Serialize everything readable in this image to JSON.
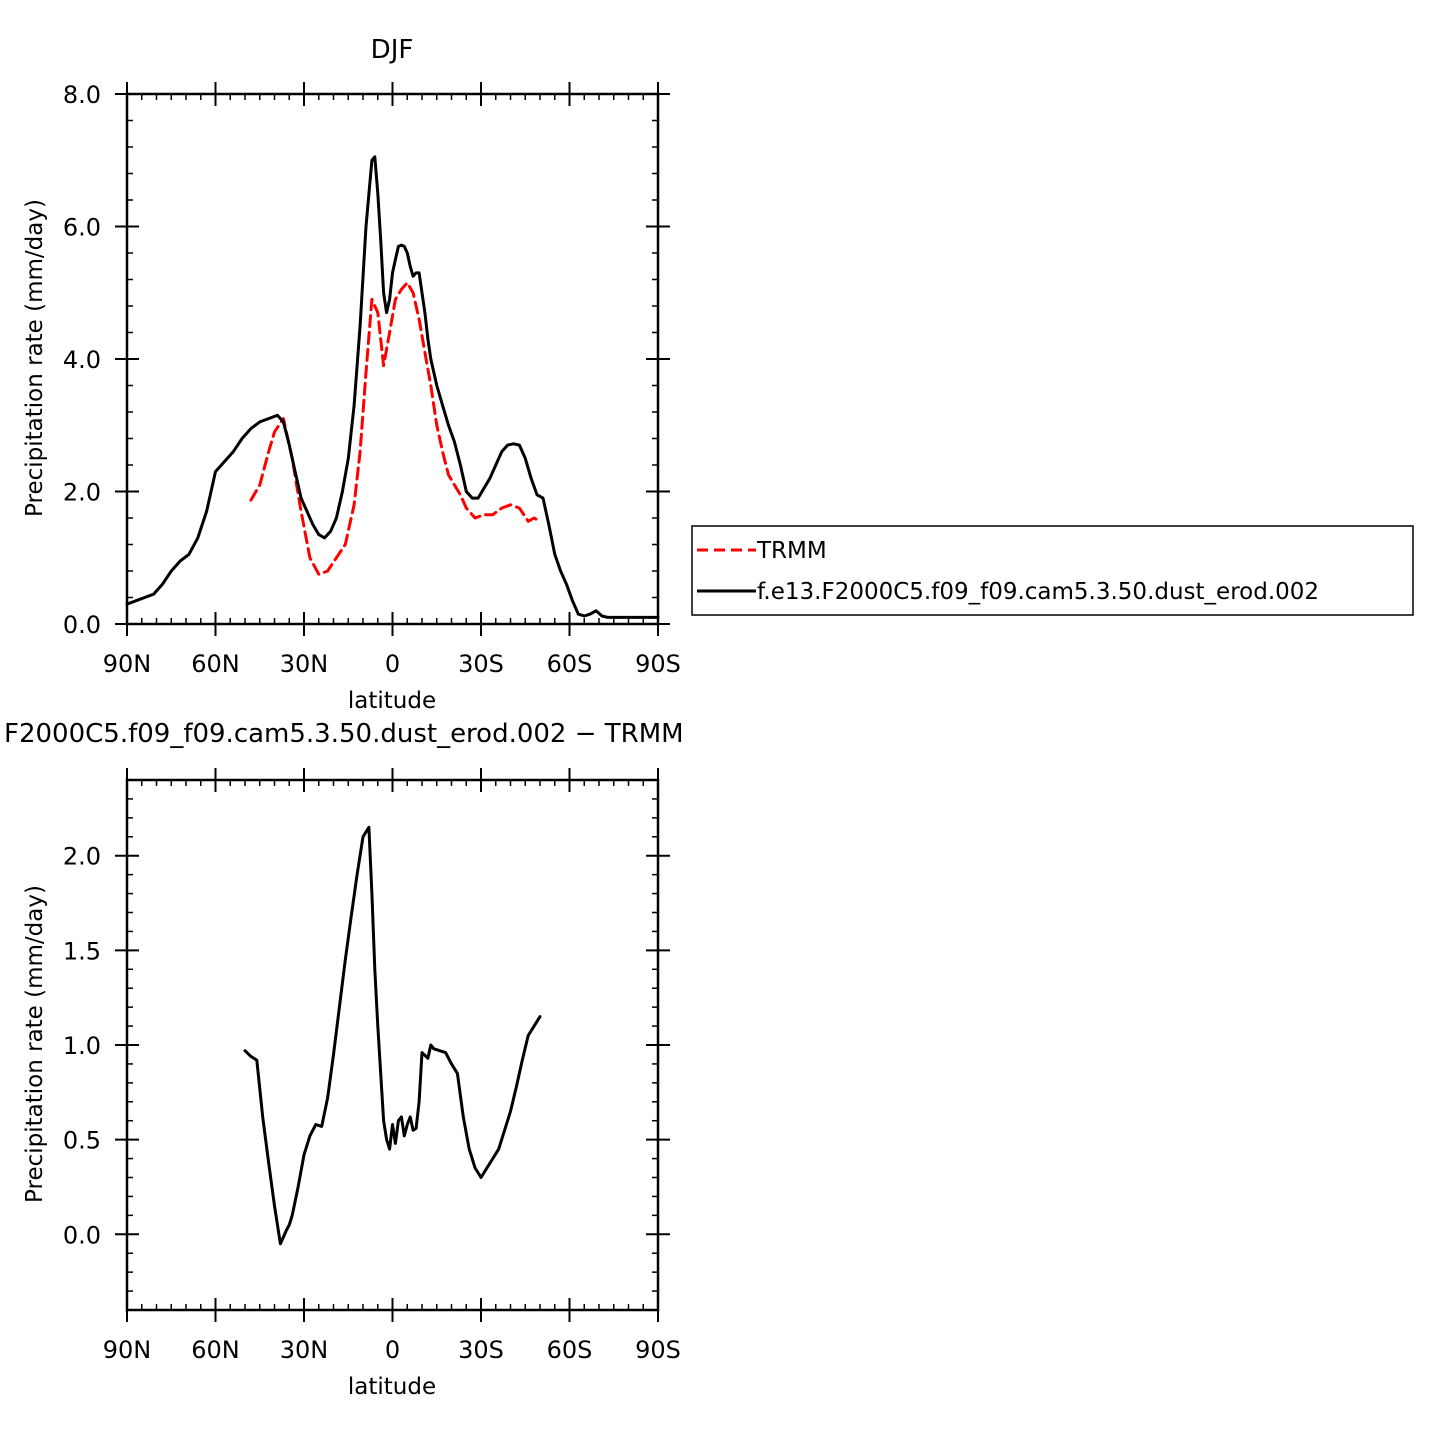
{
  "chart_data": [
    {
      "type": "line",
      "title": "DJF",
      "xlabel": "latitude",
      "ylabel": "Precipitation rate (mm/day)",
      "xlim": [
        -90,
        90
      ],
      "ylim": [
        0,
        8
      ],
      "x_ticks": [
        -90,
        -60,
        -30,
        0,
        30,
        60,
        90
      ],
      "x_tick_labels": [
        "90N",
        "60N",
        "30N",
        "0",
        "30S",
        "60S",
        "90S"
      ],
      "y_ticks": [
        0,
        2,
        4,
        6,
        8
      ],
      "y_tick_labels": [
        "0.0",
        "2.0",
        "4.0",
        "6.0",
        "8.0"
      ],
      "legend_position": "right",
      "series": [
        {
          "name": "TRMM",
          "color": "#ff0000",
          "style": "dashed",
          "x": [
            -48,
            -45,
            -42,
            -40,
            -37,
            -34,
            -31,
            -28,
            -25,
            -22,
            -19,
            -16,
            -13,
            -11,
            -9,
            -7,
            -5,
            -3,
            -1,
            1,
            3,
            5,
            7,
            9,
            11,
            13,
            15,
            17,
            19,
            21,
            23,
            25,
            28,
            31,
            34,
            37,
            40,
            43,
            46,
            48,
            50
          ],
          "y": [
            1.87,
            2.1,
            2.6,
            2.9,
            3.1,
            2.5,
            1.7,
            1.0,
            0.75,
            0.8,
            1.0,
            1.2,
            1.8,
            2.6,
            3.8,
            4.9,
            4.7,
            3.9,
            4.4,
            4.9,
            5.05,
            5.15,
            5.0,
            4.6,
            4.1,
            3.6,
            3.0,
            2.6,
            2.25,
            2.1,
            1.95,
            1.75,
            1.6,
            1.65,
            1.65,
            1.75,
            1.8,
            1.75,
            1.55,
            1.6,
            1.55
          ]
        },
        {
          "name": "f.e13.F2000C5.f09_f09.cam5.3.50.dust_erod.002",
          "color": "#000000",
          "style": "solid",
          "x": [
            -90,
            -87,
            -84,
            -81,
            -78,
            -75,
            -72,
            -69,
            -66,
            -63,
            -60,
            -57,
            -54,
            -51,
            -48,
            -45,
            -42,
            -39,
            -37,
            -35,
            -33,
            -31,
            -29,
            -27,
            -25,
            -23,
            -21,
            -19,
            -17,
            -15,
            -13,
            -11,
            -9,
            -7,
            -6,
            -5,
            -4,
            -3,
            -2,
            -1,
            0,
            1,
            2,
            3,
            4,
            5,
            6,
            7,
            8,
            9,
            10,
            11,
            12,
            13,
            15,
            17,
            19,
            21,
            23,
            25,
            27,
            29,
            31,
            33,
            35,
            37,
            39,
            41,
            43,
            45,
            47,
            49,
            51,
            53,
            55,
            57,
            59,
            61,
            63,
            65,
            67,
            69,
            71,
            73,
            75,
            77,
            79,
            81,
            83,
            85,
            87,
            89,
            90
          ],
          "y": [
            0.3,
            0.35,
            0.4,
            0.45,
            0.6,
            0.8,
            0.95,
            1.05,
            1.3,
            1.7,
            2.3,
            2.45,
            2.6,
            2.8,
            2.95,
            3.05,
            3.1,
            3.15,
            3.05,
            2.7,
            2.3,
            1.9,
            1.7,
            1.5,
            1.35,
            1.3,
            1.4,
            1.6,
            2.0,
            2.5,
            3.3,
            4.5,
            6.0,
            7.0,
            7.05,
            6.5,
            5.8,
            5.0,
            4.7,
            4.9,
            5.3,
            5.5,
            5.7,
            5.72,
            5.7,
            5.6,
            5.4,
            5.25,
            5.3,
            5.3,
            5.0,
            4.7,
            4.3,
            4.0,
            3.6,
            3.3,
            3.0,
            2.75,
            2.4,
            2.0,
            1.9,
            1.9,
            2.05,
            2.2,
            2.4,
            2.6,
            2.7,
            2.72,
            2.7,
            2.5,
            2.2,
            1.95,
            1.9,
            1.5,
            1.05,
            0.8,
            0.6,
            0.35,
            0.15,
            0.12,
            0.15,
            0.2,
            0.12,
            0.1,
            0.1,
            0.1,
            0.1,
            0.1,
            0.1,
            0.1,
            0.1,
            0.1,
            0.1
          ]
        }
      ]
    },
    {
      "type": "line",
      "title": "F2000C5.f09_f09.cam5.3.50.dust_erod.002 − TRMM",
      "xlabel": "latitude",
      "ylabel": "Precipitation rate (mm/day)",
      "xlim": [
        -90,
        90
      ],
      "ylim": [
        -0.4,
        2.4
      ],
      "x_ticks": [
        -90,
        -60,
        -30,
        0,
        30,
        60,
        90
      ],
      "x_tick_labels": [
        "90N",
        "60N",
        "30N",
        "0",
        "30S",
        "60S",
        "90S"
      ],
      "y_ticks": [
        0,
        0.5,
        1,
        1.5,
        2
      ],
      "y_tick_labels": [
        "0.0",
        "0.5",
        "1.0",
        "1.5",
        "2.0"
      ],
      "series": [
        {
          "color": "#000000",
          "style": "solid",
          "x": [
            -50,
            -48,
            -46,
            -44,
            -42,
            -40,
            -38,
            -36,
            -35,
            -34,
            -32,
            -30,
            -28,
            -26,
            -24,
            -22,
            -20,
            -18,
            -16,
            -14,
            -12,
            -10,
            -8,
            -7,
            -6,
            -5,
            -4,
            -3,
            -2,
            -1,
            0,
            1,
            2,
            3,
            4,
            5,
            6,
            7,
            8,
            9,
            10,
            12,
            13,
            14,
            16,
            18,
            20,
            22,
            24,
            26,
            28,
            30,
            32,
            34,
            36,
            38,
            40,
            42,
            44,
            46,
            48,
            50
          ],
          "y": [
            0.97,
            0.94,
            0.92,
            0.62,
            0.38,
            0.15,
            -0.05,
            0.02,
            0.05,
            0.1,
            0.25,
            0.42,
            0.52,
            0.58,
            0.57,
            0.72,
            0.95,
            1.2,
            1.45,
            1.68,
            1.9,
            2.1,
            2.15,
            1.8,
            1.4,
            1.1,
            0.85,
            0.6,
            0.5,
            0.45,
            0.58,
            0.48,
            0.6,
            0.62,
            0.52,
            0.58,
            0.62,
            0.55,
            0.56,
            0.7,
            0.96,
            0.93,
            1.0,
            0.98,
            0.97,
            0.96,
            0.9,
            0.85,
            0.62,
            0.45,
            0.35,
            0.3,
            0.35,
            0.4,
            0.45,
            0.55,
            0.65,
            0.78,
            0.92,
            1.05,
            1.1,
            1.15
          ]
        }
      ]
    }
  ]
}
